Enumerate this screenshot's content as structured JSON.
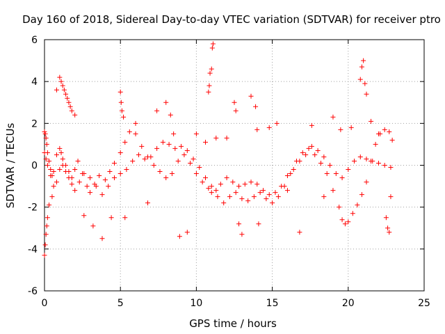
{
  "chart_data": {
    "type": "scatter",
    "title": "Day 160 of 2018, Sidereal Day-to-day VTEC variation (SDTVAR) for receiver ptro",
    "xlabel": "GPS time / hours",
    "ylabel": "SDTVAR / TECUs",
    "xlim": [
      0,
      25
    ],
    "ylim": [
      -6,
      6
    ],
    "xticks": [
      0,
      5,
      10,
      15,
      20,
      25
    ],
    "yticks": [
      -6,
      -4,
      -2,
      0,
      2,
      4,
      6
    ],
    "xtick_labels": [
      "0",
      "5",
      "10",
      "15",
      "20",
      "25"
    ],
    "ytick_labels": [
      "-6",
      "-4",
      "-2",
      "0",
      "2",
      "4",
      "6"
    ],
    "grid": true,
    "marker": "plus",
    "color": "#ff0000",
    "series": [
      {
        "name": "SDTVAR",
        "x": [
          0.0,
          0.05,
          0.1,
          0.15,
          0.2,
          0.3,
          0.4,
          0.5,
          0.6,
          0.8,
          1.0,
          1.1,
          1.2,
          1.4,
          1.6,
          1.8,
          2.0,
          2.2,
          2.5,
          2.8,
          3.0,
          3.3,
          3.6,
          4.0,
          4.3,
          4.6,
          5.0,
          5.3,
          5.6,
          6.0,
          6.4,
          6.8,
          7.2,
          7.6,
          8.0,
          8.4,
          8.8,
          9.2,
          9.6,
          10.0,
          10.4,
          10.8,
          11.0,
          11.3,
          11.6,
          12.0,
          12.4,
          12.8,
          13.2,
          13.6,
          14.0,
          14.4,
          14.8,
          15.2,
          15.6,
          16.0,
          16.4,
          16.8,
          17.2,
          17.6,
          18.0,
          18.4,
          18.8,
          19.2,
          19.6,
          20.0,
          20.4,
          20.8,
          21.2,
          21.6,
          22.0,
          22.4,
          22.8
        ],
        "y": [
          1.6,
          1.5,
          1.3,
          1.0,
          0.6,
          0.2,
          -0.2,
          -0.5,
          -0.3,
          0.5,
          0.8,
          0.6,
          0.3,
          0.0,
          -0.3,
          -0.6,
          -0.2,
          0.2,
          -0.4,
          -1.0,
          -1.3,
          -0.9,
          -0.5,
          -0.7,
          -0.3,
          0.1,
          0.6,
          1.1,
          1.6,
          1.5,
          0.9,
          0.4,
          0.0,
          -0.3,
          -0.6,
          -0.4,
          0.2,
          0.5,
          0.1,
          -0.4,
          -0.8,
          -1.1,
          -1.3,
          -1.2,
          -0.9,
          -0.6,
          -0.8,
          -1.0,
          -0.9,
          -0.8,
          -0.9,
          -1.2,
          -1.4,
          -1.3,
          -1.0,
          -0.5,
          -0.2,
          0.2,
          0.5,
          0.9,
          0.7,
          0.4,
          0.0,
          -0.4,
          -0.6,
          -0.2,
          0.2,
          0.4,
          0.3,
          0.2,
          0.1,
          0.0,
          -0.1
        ]
      },
      {
        "name": "SDTVAR",
        "x": [
          0.0,
          0.1,
          0.2,
          0.4,
          0.6,
          0.8,
          1.0,
          1.2,
          1.4,
          1.6,
          1.8,
          2.0,
          2.3,
          2.6,
          3.0,
          3.4,
          3.8,
          4.2,
          4.6,
          5.0,
          5.4,
          5.8,
          6.2,
          6.6,
          7.0,
          7.4,
          7.8,
          8.2,
          8.6,
          9.0,
          9.4,
          9.8,
          10.2,
          10.6,
          11.0,
          11.4,
          11.8,
          12.2,
          12.6,
          13.0,
          13.4,
          13.8,
          14.2,
          14.6,
          15.0,
          15.4,
          15.8,
          16.2,
          16.6,
          17.0,
          17.4,
          17.8,
          18.2,
          18.6,
          19.0,
          19.4,
          19.6,
          19.8,
          20.0,
          20.3,
          20.6,
          20.9,
          21.2,
          21.5,
          21.8,
          22.1,
          22.4,
          22.7,
          22.9
        ],
        "y": [
          0.6,
          0.3,
          0.0,
          -0.5,
          -1.0,
          -0.8,
          -0.2,
          0.0,
          -0.3,
          -0.6,
          -0.9,
          -1.2,
          -0.8,
          -0.4,
          -0.6,
          -1.0,
          -1.4,
          -1.0,
          -0.6,
          -0.4,
          -0.2,
          0.2,
          0.5,
          0.3,
          0.4,
          0.8,
          1.1,
          1.0,
          0.8,
          0.9,
          0.7,
          0.3,
          -0.1,
          -0.6,
          -1.0,
          -1.5,
          -1.8,
          -1.5,
          -1.3,
          -1.6,
          -1.7,
          -1.5,
          -1.3,
          -1.6,
          -1.8,
          -1.5,
          -1.0,
          -0.4,
          0.2,
          0.6,
          0.8,
          0.5,
          0.1,
          -0.4,
          -1.2,
          -2.0,
          -2.6,
          -2.8,
          -2.7,
          -2.3,
          -1.9,
          -1.4,
          -0.8,
          0.2,
          1.0,
          1.5,
          1.7,
          1.6,
          1.2
        ]
      },
      {
        "name": "SDTVAR",
        "x": [
          0.0,
          0.05,
          0.1,
          0.15,
          0.2,
          0.3,
          0.5,
          0.8,
          1.0,
          1.1,
          1.2,
          1.3,
          1.4,
          1.5,
          1.6,
          1.7,
          1.8,
          2.0,
          2.6,
          3.2,
          3.8,
          4.4,
          5.0,
          5.05,
          5.1,
          5.2,
          5.3,
          6.0,
          6.8,
          7.4,
          8.0,
          8.3,
          8.5,
          8.9,
          9.4,
          10.0,
          10.6,
          10.8,
          10.85,
          10.9,
          11.0,
          11.05,
          11.1,
          11.3,
          12.0,
          12.5,
          12.6,
          12.8,
          13.0,
          13.6,
          13.9,
          14.0,
          14.1,
          14.8,
          15.3,
          16.0,
          16.8,
          17.6,
          18.4,
          19.0,
          19.5,
          20.2,
          20.8,
          20.9,
          21.0,
          21.1,
          21.2,
          21.5,
          22.0,
          22.5,
          22.6,
          22.7,
          22.8
        ],
        "y": [
          -4.3,
          -3.8,
          -3.3,
          -2.9,
          -2.5,
          -1.9,
          -1.5,
          3.6,
          4.2,
          4.0,
          3.8,
          3.6,
          3.4,
          3.2,
          3.0,
          2.8,
          2.6,
          2.4,
          -2.4,
          -2.9,
          -3.5,
          -2.5,
          3.5,
          3.0,
          2.6,
          2.3,
          -2.5,
          2.0,
          -1.8,
          2.6,
          3.0,
          2.4,
          1.5,
          -3.4,
          -3.2,
          1.5,
          1.1,
          3.5,
          3.8,
          4.4,
          4.6,
          5.6,
          5.8,
          1.3,
          1.3,
          3.0,
          2.6,
          -2.8,
          -3.3,
          3.3,
          2.8,
          1.7,
          -2.8,
          1.8,
          2.0,
          -1.2,
          -3.2,
          1.9,
          -1.5,
          2.3,
          1.7,
          1.8,
          4.1,
          4.7,
          5.0,
          3.9,
          3.4,
          2.1,
          1.5,
          -2.5,
          -3.0,
          -3.2,
          -1.5
        ]
      }
    ]
  }
}
